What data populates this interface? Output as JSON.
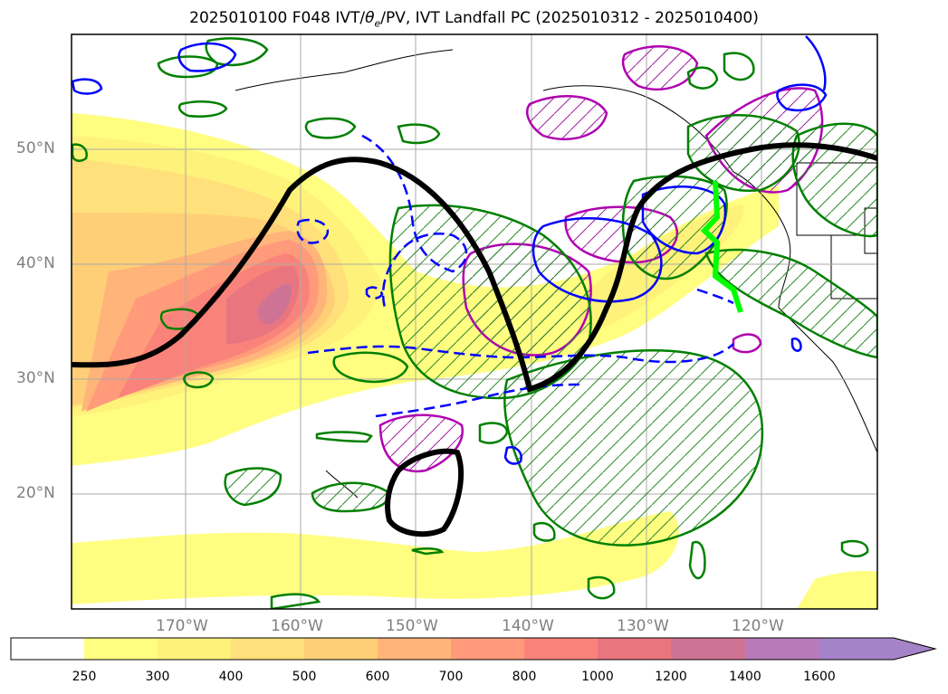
{
  "title": {
    "prefix": "2025010100 F048 IVT/",
    "symbol": "θ",
    "subscript": "e",
    "suffix": "/PV, IVT Landfall PC (2025010312 - 2025010400)"
  },
  "axes": {
    "latitudes": [
      "50°N",
      "40°N",
      "30°N",
      "20°N"
    ],
    "longitudes": [
      "170°W",
      "160°W",
      "150°W",
      "140°W",
      "130°W",
      "120°W"
    ]
  },
  "colorbar": {
    "ticks": [
      "250",
      "300",
      "400",
      "500",
      "600",
      "700",
      "800",
      "1000",
      "1200",
      "1400",
      "1600"
    ],
    "colors": [
      "#ffffff",
      "#fffe80",
      "#fff27a",
      "#ffe07a",
      "#ffcf78",
      "#ffb479",
      "#ff9a7a",
      "#f9837b",
      "#e9767f",
      "#cf7394",
      "#b97ab9",
      "#a583c9"
    ]
  },
  "map_features": {
    "ivt_field": "shaded IVT (kg/m/s)",
    "theta_e_contour_color": "#008000",
    "pv_contour_color": "#0000ff",
    "landfall_pc_color": "#b000b0",
    "trough_line_color": "#000000",
    "landfall_marker_color": "#00ff00"
  }
}
